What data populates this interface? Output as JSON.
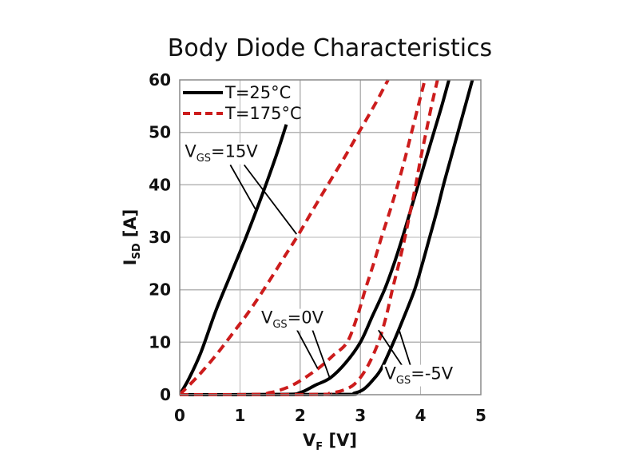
{
  "figure": {
    "title": "Body Diode Characteristics"
  },
  "chart_data": {
    "type": "line",
    "title": "Body Diode Characteristics",
    "xlabel": {
      "base": "V",
      "sub": "F",
      "rest": " [V]"
    },
    "ylabel": {
      "base": "I",
      "sub": "SD",
      "rest": " [A]"
    },
    "xlim": [
      0,
      5
    ],
    "ylim": [
      0,
      60
    ],
    "x_ticks": [
      0,
      1,
      2,
      3,
      4,
      5
    ],
    "y_ticks": [
      0,
      10,
      20,
      30,
      40,
      50,
      60
    ],
    "grid": true,
    "colors": {
      "t25": "#000000",
      "t175": "#cc1c1c",
      "grid": "#b5b5b5",
      "border": "#8a8a8a",
      "text": "#111111"
    },
    "legend": {
      "position": "top-left",
      "entries": [
        {
          "label": "T=25°C",
          "line": "solid",
          "color": "#000000"
        },
        {
          "label": "T=175°C",
          "line": "dashed",
          "color": "#cc1c1c"
        }
      ]
    },
    "series": [
      {
        "id": "t25c-vgs15v",
        "name": "T=25°C, VGS=15V",
        "temperature": "25°C",
        "vgs": "15V",
        "style": "solid",
        "color": "#000000",
        "points": [
          [
            0,
            0
          ],
          [
            0.15,
            3
          ],
          [
            0.35,
            8
          ],
          [
            0.6,
            16
          ],
          [
            0.85,
            23
          ],
          [
            1.1,
            30
          ],
          [
            1.35,
            37.5
          ],
          [
            1.6,
            45.5
          ],
          [
            1.77,
            51.5
          ]
        ]
      },
      {
        "id": "t25c-vgs0v",
        "name": "T=25°C, VGS=0V",
        "temperature": "25°C",
        "vgs": "0V",
        "style": "solid",
        "color": "#000000",
        "points": [
          [
            0,
            0
          ],
          [
            1.7,
            0.05
          ],
          [
            2.0,
            0.4
          ],
          [
            2.25,
            1.8
          ],
          [
            2.5,
            3.2
          ],
          [
            2.75,
            6
          ],
          [
            3.0,
            10
          ],
          [
            3.2,
            15
          ],
          [
            3.4,
            20
          ],
          [
            3.56,
            25
          ],
          [
            3.7,
            30
          ],
          [
            3.83,
            35
          ],
          [
            3.96,
            40
          ],
          [
            4.09,
            45
          ],
          [
            4.22,
            50
          ],
          [
            4.35,
            55
          ],
          [
            4.47,
            60
          ]
        ]
      },
      {
        "id": "t25c-vgs-minus5v",
        "name": "T=25°C, VGS=-5V",
        "temperature": "25°C",
        "vgs": "-5V",
        "style": "solid",
        "color": "#000000",
        "points": [
          [
            0,
            0
          ],
          [
            2.65,
            0.05
          ],
          [
            2.9,
            0.3
          ],
          [
            3.05,
            1
          ],
          [
            3.2,
            2.7
          ],
          [
            3.35,
            5
          ],
          [
            3.55,
            10
          ],
          [
            3.73,
            15
          ],
          [
            3.9,
            20
          ],
          [
            4.03,
            25
          ],
          [
            4.15,
            30
          ],
          [
            4.27,
            35
          ],
          [
            4.38,
            40
          ],
          [
            4.5,
            45
          ],
          [
            4.62,
            50
          ],
          [
            4.74,
            55
          ],
          [
            4.86,
            60
          ]
        ]
      },
      {
        "id": "t175c-vgs15v",
        "name": "T=175°C, VGS=15V",
        "temperature": "175°C",
        "vgs": "15V",
        "style": "dashed",
        "color": "#cc1c1c",
        "points": [
          [
            0,
            0
          ],
          [
            0.3,
            3.5
          ],
          [
            0.6,
            7.5
          ],
          [
            0.9,
            12
          ],
          [
            1.16,
            16
          ],
          [
            1.45,
            21
          ],
          [
            1.75,
            26.5
          ],
          [
            1.96,
            30.3
          ],
          [
            2.2,
            35
          ],
          [
            2.47,
            40.2
          ],
          [
            2.75,
            45.5
          ],
          [
            3.0,
            50.5
          ],
          [
            3.25,
            55.5
          ],
          [
            3.46,
            60
          ]
        ]
      },
      {
        "id": "t175c-vgs0v",
        "name": "T=175°C, VGS=0V",
        "temperature": "175°C",
        "vgs": "0V",
        "style": "dashed",
        "color": "#cc1c1c",
        "points": [
          [
            0,
            0
          ],
          [
            1.25,
            0.05
          ],
          [
            1.5,
            0.4
          ],
          [
            1.7,
            1
          ],
          [
            1.95,
            2.3
          ],
          [
            2.3,
            5
          ],
          [
            2.55,
            7.5
          ],
          [
            2.78,
            10
          ],
          [
            2.95,
            15
          ],
          [
            3.08,
            20
          ],
          [
            3.22,
            25
          ],
          [
            3.35,
            30
          ],
          [
            3.49,
            35
          ],
          [
            3.62,
            40
          ],
          [
            3.74,
            45
          ],
          [
            3.85,
            50
          ],
          [
            3.96,
            55
          ],
          [
            4.07,
            60
          ]
        ]
      },
      {
        "id": "t175c-vgs-minus5v",
        "name": "T=175°C, VGS=-5V",
        "temperature": "175°C",
        "vgs": "-5V",
        "style": "dashed",
        "color": "#cc1c1c",
        "points": [
          [
            0,
            0
          ],
          [
            2.25,
            0.05
          ],
          [
            2.5,
            0.3
          ],
          [
            2.7,
            0.8
          ],
          [
            2.9,
            2
          ],
          [
            3.1,
            5
          ],
          [
            3.3,
            10
          ],
          [
            3.43,
            15
          ],
          [
            3.53,
            20
          ],
          [
            3.64,
            25
          ],
          [
            3.74,
            30
          ],
          [
            3.83,
            35
          ],
          [
            3.92,
            40
          ],
          [
            4.0,
            45
          ],
          [
            4.09,
            50
          ],
          [
            4.18,
            55
          ],
          [
            4.28,
            60
          ]
        ]
      }
    ],
    "annotations": [
      {
        "base": "V",
        "sub": "GS",
        "rest": "=15V",
        "x": 0.69,
        "y": 46.0,
        "leaders": [
          [
            0.84,
            43.8,
            1.26,
            35.3
          ],
          [
            1.07,
            43.8,
            1.94,
            30.6
          ]
        ]
      },
      {
        "base": "V",
        "sub": "GS",
        "rest": "=0V",
        "x": 1.87,
        "y": 14.3,
        "leaders": [
          [
            1.94,
            12.5,
            2.29,
            5.0
          ],
          [
            2.2,
            12.5,
            2.49,
            3.2
          ]
        ]
      },
      {
        "base": "V",
        "sub": "GS",
        "rest": "=-5V",
        "x": 3.97,
        "y": 3.7,
        "leaders": [
          [
            3.69,
            5.6,
            3.3,
            12.3
          ],
          [
            3.83,
            5.6,
            3.63,
            12.8
          ]
        ]
      }
    ]
  }
}
